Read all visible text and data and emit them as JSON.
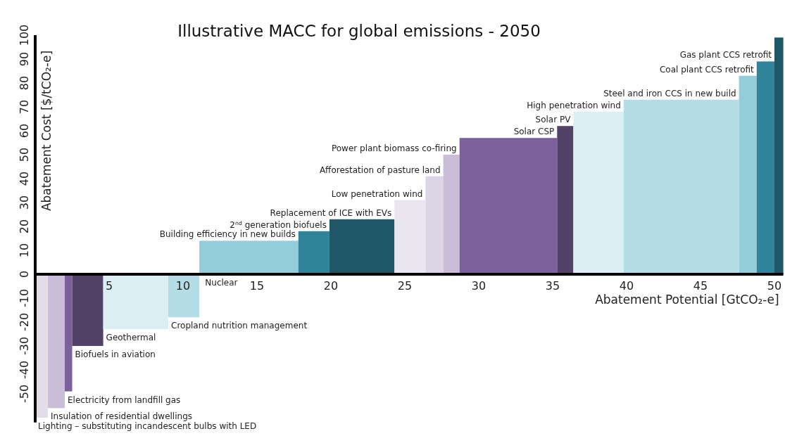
{
  "chart_data": {
    "type": "histogram",
    "title": "Illustrative MACC for global emissions - 2050",
    "xlabel": "Abatement Potential [GtCO₂-e]",
    "ylabel": "Abatement Cost [$/tCO₂-e]",
    "bins": [
      0,
      0.86,
      2.0,
      2.5,
      4.6,
      9.0,
      11.1,
      17.8,
      19.9,
      24.3,
      26.4,
      27.6,
      28.7,
      35.3,
      36.4,
      39.8,
      47.6,
      48.8,
      50.0,
      50.6
    ],
    "values": [
      -60,
      -56,
      -49,
      -30,
      -23,
      -18,
      14,
      18,
      23,
      31,
      41,
      50,
      57,
      62,
      68,
      73,
      83,
      89,
      99
    ],
    "colors": [
      "#e2dde8",
      "#c9bdd8",
      "#7b619c",
      "#534268",
      "#dbeef3",
      "#b5dde6",
      "#93cdd9",
      "#2f8499",
      "#205766",
      "#eae6ef",
      "#dcd5e5",
      "#c9bdd8",
      "#7b619c",
      "#534268",
      "#dbeef3",
      "#b5dde6",
      "#93cdd9",
      "#2f8499",
      "#205766"
    ],
    "xlim": [
      0,
      50.6
    ],
    "xticks": [
      5,
      10,
      15,
      20,
      25,
      30,
      35,
      40,
      45,
      50
    ],
    "ylim": [
      -62,
      100
    ],
    "yticks": [
      -50,
      -40,
      -30,
      -20,
      -10,
      0,
      10,
      20,
      30,
      40,
      50,
      60,
      70,
      80,
      90,
      100
    ],
    "annotations": [
      {
        "text": "Lighting – substituting incandescent bulbs with LED",
        "x": 0,
        "y": -60
      },
      {
        "text": "Insulation of residential dwellings",
        "x": 0.86,
        "y": -56
      },
      {
        "text": "Electricity from landfill gas",
        "x": 2.0,
        "y": -49
      },
      {
        "text": "Biofuels in aviation",
        "x": 2.5,
        "y": -30
      },
      {
        "text": "Geothermal",
        "x": 4.6,
        "y": -23
      },
      {
        "text": "Cropland nutrition management",
        "x": 9.0,
        "y": -18
      },
      {
        "text": "Nuclear",
        "x": 11.3,
        "y": 0
      },
      {
        "text": "Building efficiency in new builds",
        "x": 17.8,
        "y": 14
      },
      {
        "text": "2$^{nd}$ generation biofuels",
        "x": 19.9,
        "y": 18
      },
      {
        "text": "Replacement of ICE with EVs",
        "x": 24.3,
        "y": 23
      },
      {
        "text": "Low penetration wind",
        "x": 26.4,
        "y": 31
      },
      {
        "text": "Afforestation of pasture land",
        "x": 27.6,
        "y": 41
      },
      {
        "text": "Power plant biomass co-firing",
        "x": 28.7,
        "y": 50
      },
      {
        "text": "Solar CSP",
        "x": 35.3,
        "y": 57
      },
      {
        "text": "Solar PV",
        "x": 36.4,
        "y": 62
      },
      {
        "text": "High penetration wind",
        "x": 39.8,
        "y": 68
      },
      {
        "text": "Steel and iron CCS in new build",
        "x": 47.6,
        "y": 73
      },
      {
        "text": "Coal plant CCS retrofit",
        "x": 48.8,
        "y": 83
      },
      {
        "text": "Gas plant CCS retrofit",
        "x": 50.0,
        "y": 89
      }
    ]
  }
}
